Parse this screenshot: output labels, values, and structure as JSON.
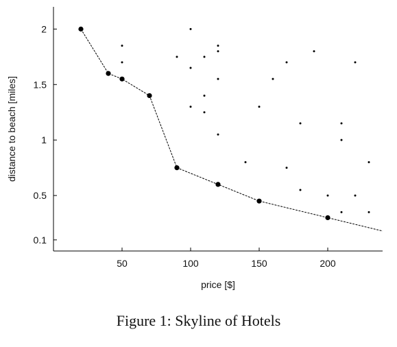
{
  "caption": "Figure 1: Skyline of Hotels",
  "chart_data": {
    "type": "scatter",
    "xlabel": "price [$]",
    "ylabel": "distance to beach [miles]",
    "xlim": [
      0,
      240
    ],
    "ylim": [
      0,
      2.2
    ],
    "xticks": [
      50,
      100,
      150,
      200
    ],
    "yticks": [
      0.1,
      0.5,
      1,
      1.5,
      2
    ],
    "ytick_labels": [
      "0.1",
      "0.5",
      "1",
      "1.5",
      "2"
    ],
    "grid": false,
    "series": [
      {
        "role": "skyline",
        "marker": "large-dot",
        "connected": true,
        "points": [
          [
            20,
            2.0
          ],
          [
            40,
            1.6
          ],
          [
            50,
            1.55
          ],
          [
            70,
            1.4
          ],
          [
            90,
            0.75
          ],
          [
            120,
            0.6
          ],
          [
            150,
            0.45
          ],
          [
            200,
            0.3
          ]
        ],
        "line_extension": [
          240,
          0.18
        ]
      },
      {
        "role": "hotels",
        "marker": "small-dot",
        "connected": false,
        "points": [
          [
            50,
            1.85
          ],
          [
            50,
            1.7
          ],
          [
            90,
            1.75
          ],
          [
            100,
            2.0
          ],
          [
            100,
            1.65
          ],
          [
            100,
            1.3
          ],
          [
            110,
            1.75
          ],
          [
            110,
            1.4
          ],
          [
            110,
            1.25
          ],
          [
            120,
            1.85
          ],
          [
            120,
            1.8
          ],
          [
            120,
            1.55
          ],
          [
            120,
            1.05
          ],
          [
            140,
            0.8
          ],
          [
            150,
            1.3
          ],
          [
            160,
            1.55
          ],
          [
            170,
            1.7
          ],
          [
            170,
            0.75
          ],
          [
            180,
            1.15
          ],
          [
            180,
            0.55
          ],
          [
            190,
            1.8
          ],
          [
            200,
            0.5
          ],
          [
            210,
            1.15
          ],
          [
            210,
            1.0
          ],
          [
            210,
            0.35
          ],
          [
            220,
            1.7
          ],
          [
            220,
            0.5
          ],
          [
            230,
            0.8
          ],
          [
            230,
            0.35
          ]
        ]
      }
    ]
  }
}
